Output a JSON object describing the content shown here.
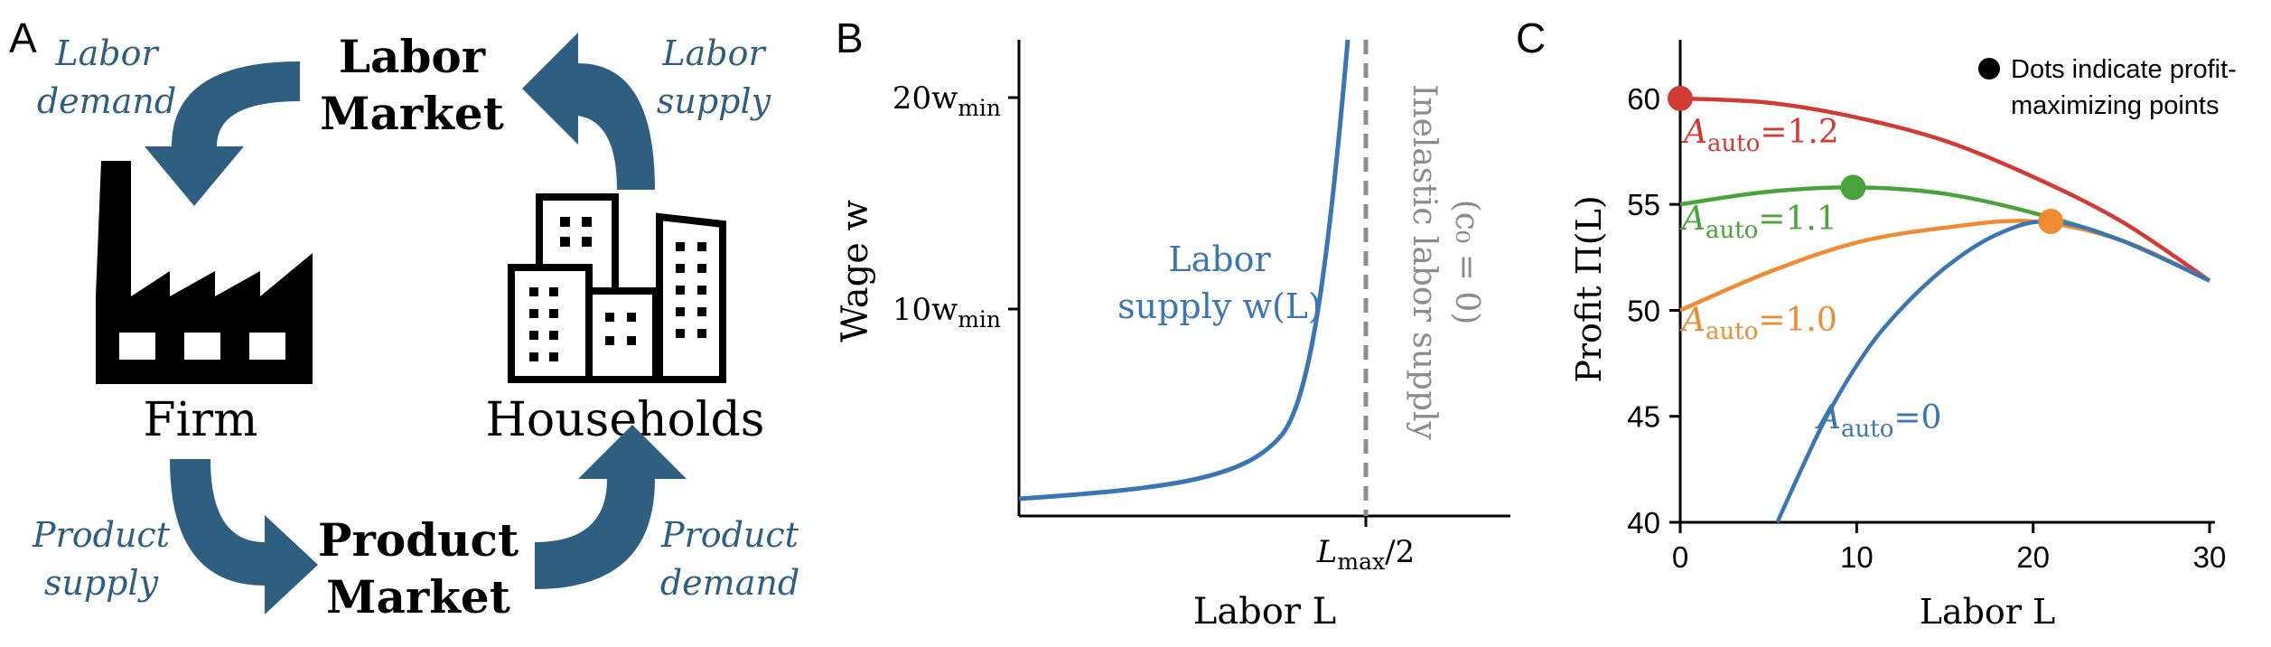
{
  "colors": {
    "arrow": "#2e5f80",
    "supply_curve": "#3a76b4",
    "dashed": "#8c8c8c",
    "red": "#d13b33",
    "green": "#4aa33a",
    "orange": "#f08a33",
    "blue": "#3a76b4",
    "text_blue": "#2e5f80"
  },
  "panelA": {
    "letter": "A",
    "labor_market": [
      "Labor",
      "Market"
    ],
    "product_market": [
      "Product",
      "Market"
    ],
    "firm": "Firm",
    "households": "Households",
    "labor_demand": [
      "Labor",
      "demand"
    ],
    "labor_supply": [
      "Labor",
      "supply"
    ],
    "product_supply": [
      "Product",
      "supply"
    ],
    "product_demand": [
      "Product",
      "demand"
    ]
  },
  "panelB": {
    "letter": "B",
    "ylabel": "Wage w",
    "xlabel": "Labor L",
    "yticks": [
      {
        "main": "20w",
        "sub": "min"
      },
      {
        "main": "10w",
        "sub": "min"
      }
    ],
    "xtick": {
      "main": "L",
      "sub": "max",
      "tail": "/2"
    },
    "curve_label": [
      "Labor",
      "supply w(L)"
    ],
    "inelastic_label": [
      "Inelastic labor supply",
      "(c₀ = 0)"
    ]
  },
  "panelC": {
    "letter": "C",
    "legend": [
      "Dots indicate profit-",
      "maximizing points"
    ],
    "xlabel": "Labor L",
    "ylabel": "Profit Π(L)",
    "labels": [
      {
        "main": "A",
        "sub": "auto",
        "value": "=1.2"
      },
      {
        "main": "A",
        "sub": "auto",
        "value": "=1.1"
      },
      {
        "main": "A",
        "sub": "auto",
        "value": "=1.0"
      },
      {
        "main": "A",
        "sub": "auto",
        "value": "=0"
      }
    ]
  },
  "chart_data": {
    "type": "line",
    "xlabel": "Labor L",
    "ylabel": "Profit Π(L)",
    "xlim": [
      0,
      30
    ],
    "ylim": [
      40,
      62
    ],
    "xticks": [
      0,
      10,
      20,
      30
    ],
    "yticks": [
      40,
      45,
      50,
      55,
      60
    ],
    "series": [
      {
        "name": "A_auto=1.2",
        "x": [
          0,
          5,
          10,
          15,
          20,
          25,
          30
        ],
        "y": [
          60,
          59.8,
          59.1,
          58,
          56.3,
          54.2,
          51.4
        ],
        "max_point": [
          0,
          60
        ]
      },
      {
        "name": "A_auto=1.1",
        "x": [
          0,
          5,
          10,
          15,
          20,
          25,
          30
        ],
        "y": [
          55,
          55.6,
          55.8,
          55.5,
          54.6,
          53.3,
          51.4
        ],
        "max_point": [
          9.8,
          55.8
        ]
      },
      {
        "name": "A_auto=1.0",
        "x": [
          0,
          5,
          10,
          15,
          20,
          25,
          30
        ],
        "y": [
          50,
          51.8,
          53.2,
          53.9,
          54.2,
          53.3,
          51.4
        ],
        "max_point": [
          21,
          54.2
        ]
      },
      {
        "name": "A_auto=0",
        "x": [
          5.5,
          8,
          10,
          12,
          15,
          18,
          21,
          25,
          30
        ],
        "y": [
          40,
          44.5,
          47.4,
          49.6,
          52,
          53.6,
          54.2,
          53.3,
          51.4
        ]
      }
    ]
  }
}
